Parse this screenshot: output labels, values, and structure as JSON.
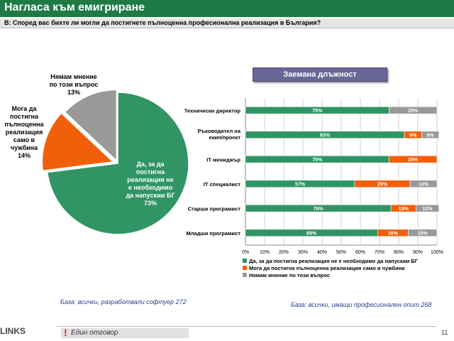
{
  "header": {
    "title": "Нагласа към емигриране",
    "question": "В: Според вас бихте ли могли да постигнете пълноценна професионална реализация в България?"
  },
  "pie_labels": {
    "green": [
      "Да, за да",
      "постигна",
      "реализация не",
      "е необходимо",
      "да напускам БГ",
      "73%"
    ],
    "orange": [
      "Мога да",
      "постигна",
      "пълноценна",
      "реализация",
      "само в",
      "чужбина",
      "14%"
    ],
    "gray": [
      "Нямам мнение",
      "по този въпрос",
      "13%"
    ]
  },
  "bar_section": {
    "title": "Заемана длъжност"
  },
  "colors": {
    "green": "#319464",
    "orange": "#f25f0a",
    "gray": "#999999",
    "header_green": "#1f7a45",
    "banner": "#6a6697"
  },
  "chart_data": [
    {
      "type": "pie",
      "labels": [
        "Да, за да постигна реализация не е необходимо да напускам БГ",
        "Мога да постигна пълноценна реализация само в чужбина",
        "Нямам мнение по този въпрос"
      ],
      "values": [
        73,
        14,
        13
      ],
      "value_labels": [
        "73%",
        "14%",
        "13%"
      ],
      "colors": [
        "#319464",
        "#f25f0a",
        "#999999"
      ]
    },
    {
      "type": "bar",
      "orientation": "horizontal",
      "stacked": true,
      "categories": [
        "Технически директор",
        "Ръководител на екип/проект",
        "IT мениджър",
        "IT специалист",
        "Старши програмист",
        "Младши програмист"
      ],
      "series": [
        {
          "name": "Да, за да постигна реализация не е необходимо да напускам БГ",
          "color": "#319464",
          "values": [
            75,
            83,
            75,
            57,
            76,
            69
          ],
          "value_labels": [
            "75%",
            "83%",
            "75%",
            "57%",
            "76%",
            "69%"
          ]
        },
        {
          "name": "Мога да постигна пълноценна реализация само в чужбина",
          "color": "#f25f0a",
          "values": [
            0,
            9,
            25,
            29,
            13,
            16
          ],
          "value_labels": [
            "",
            "9%",
            "25%",
            "29%",
            "13%",
            "16%"
          ]
        },
        {
          "name": "Нямам мнение по този въпрос",
          "color": "#999999",
          "values": [
            25,
            9,
            0,
            14,
            12,
            15
          ],
          "value_labels": [
            "25%",
            "9%",
            "",
            "14%",
            "12%",
            "15%"
          ]
        }
      ],
      "xlim": [
        0,
        100
      ],
      "x_ticks": [
        "0%",
        "10%",
        "20%",
        "30%",
        "40%",
        "50%",
        "60%",
        "70%",
        "80%",
        "90%",
        "100%"
      ],
      "grid": true,
      "legend_position": "bottom"
    }
  ],
  "footer": {
    "base_left": "База: всички, разработвали софтуер 272",
    "base_right": "База: всички, имащи професионален опит 268",
    "note_mark": "!",
    "note": "Един отговор",
    "page": "11",
    "logo": "LINKS"
  }
}
